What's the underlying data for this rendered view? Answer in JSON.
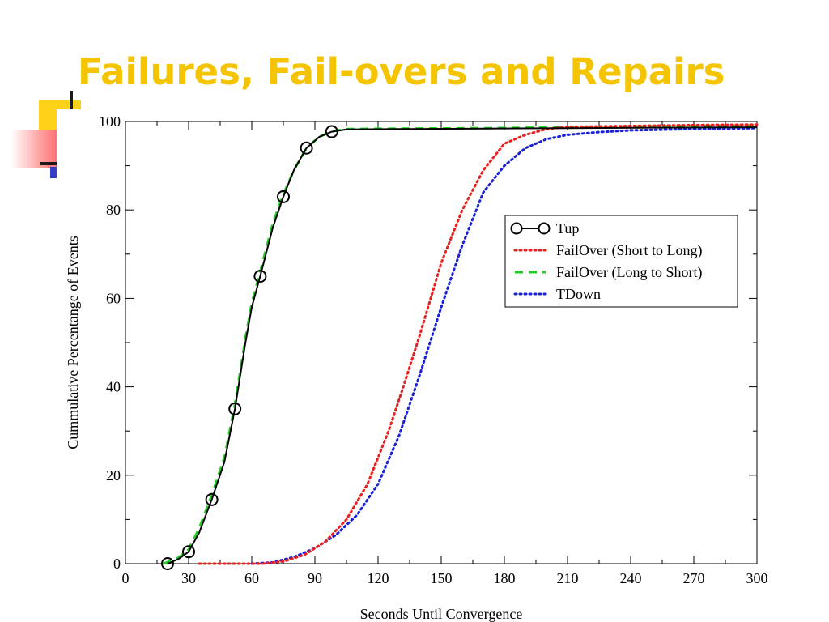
{
  "slide": {
    "title": "Failures, Fail-overs and Repairs",
    "title_color": "#f5c400",
    "deco_colors": {
      "yellow": "#ffd21a",
      "pink": "#ff5a5a",
      "blue": "#3340c8"
    }
  },
  "chart_data": {
    "type": "line",
    "title": "",
    "xlabel": "Seconds Until Convergence",
    "ylabel": "Cummulative Percentange of Events",
    "xlim": [
      0,
      300
    ],
    "ylim": [
      0,
      100
    ],
    "x_ticks": [
      0,
      30,
      60,
      90,
      120,
      150,
      180,
      210,
      240,
      270,
      300
    ],
    "y_ticks": [
      0,
      20,
      40,
      60,
      80,
      100
    ],
    "grid": false,
    "legend_position": "top-right",
    "series": [
      {
        "name": "Tup",
        "color": "#000000",
        "style": "solid-circles",
        "x": [
          20,
          25,
          30,
          35,
          41,
          47,
          52,
          57,
          60,
          64,
          70,
          75,
          80,
          86,
          92,
          98,
          105,
          130,
          170,
          210,
          250,
          300
        ],
        "y": [
          0,
          1,
          2.7,
          7,
          14.5,
          23,
          35,
          50,
          58,
          65,
          76,
          83,
          89,
          94,
          96.5,
          97.7,
          98.2,
          98.3,
          98.4,
          98.5,
          98.6,
          98.7
        ],
        "markers_x": [
          20,
          30,
          41,
          52,
          64,
          75,
          86,
          98
        ],
        "markers_y": [
          0,
          2.7,
          14.5,
          35,
          65,
          83,
          94,
          97.7
        ]
      },
      {
        "name": "FailOver (Short to Long)",
        "color": "#e8201e",
        "style": "dot",
        "x": [
          35,
          45,
          55,
          65,
          75,
          85,
          95,
          105,
          115,
          125,
          132,
          140,
          150,
          160,
          170,
          180,
          190,
          200,
          210,
          240,
          270,
          300
        ],
        "y": [
          0,
          0,
          0,
          0,
          0.5,
          2,
          5,
          10,
          18,
          30,
          40,
          52,
          68,
          80,
          89,
          95,
          97,
          98.3,
          98.8,
          99,
          99.2,
          99.3
        ]
      },
      {
        "name": "FailOver (Long to Short)",
        "color": "#22d022",
        "style": "dash",
        "x": [
          18,
          25,
          30,
          35,
          41,
          47,
          52,
          57,
          60,
          64,
          70,
          75,
          80,
          86,
          92,
          98,
          105,
          130,
          170,
          210,
          250,
          300
        ],
        "y": [
          0,
          1.3,
          3.2,
          8,
          15.5,
          24,
          36,
          51,
          59,
          66,
          77,
          83.5,
          89,
          94,
          96.5,
          97.8,
          98.3,
          98.4,
          98.5,
          98.7,
          98.9,
          99.1
        ]
      },
      {
        "name": "TDown",
        "color": "#1a22d8",
        "style": "dot",
        "x": [
          60,
          70,
          80,
          90,
          100,
          110,
          120,
          130,
          140,
          150,
          160,
          170,
          180,
          190,
          200,
          210,
          225,
          240,
          270,
          300
        ],
        "y": [
          0,
          0.3,
          1.5,
          3.5,
          6.5,
          11,
          18,
          29,
          43,
          58,
          72,
          84,
          90,
          94,
          96,
          97,
          97.6,
          98,
          98.3,
          98.5
        ]
      }
    ]
  }
}
